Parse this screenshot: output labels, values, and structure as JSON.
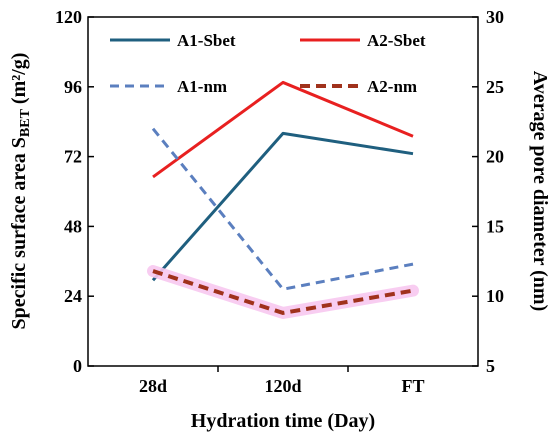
{
  "chart_data": {
    "type": "line",
    "xlabel": "Hydration time  (Day)",
    "ylabel_left_main": "Specific surface area S",
    "ylabel_left_sub": "BET",
    "ylabel_left_unit": " (m²/g)",
    "ylabel_right": "Average pore diameter  (nm)",
    "categories": [
      "28d",
      "120d",
      "FT"
    ],
    "y_left": {
      "lim": [
        0,
        120
      ],
      "ticks": [
        0,
        24,
        48,
        72,
        96,
        120
      ]
    },
    "y_right": {
      "lim": [
        5,
        30
      ],
      "ticks": [
        5,
        10,
        15,
        20,
        25,
        30
      ]
    },
    "grid": false,
    "legend_position": "top",
    "series": [
      {
        "name": "A1-Sbet",
        "axis": "left",
        "values": [
          29.5,
          80,
          73
        ],
        "color": "#1f5f7f",
        "dash": "solid",
        "width": 3
      },
      {
        "name": "A2-Sbet",
        "axis": "left",
        "values": [
          65,
          97.5,
          79
        ],
        "color": "#e82020",
        "dash": "solid",
        "width": 3
      },
      {
        "name": "A1-nm",
        "axis": "right",
        "values": [
          22,
          10.5,
          12.3
        ],
        "color": "#5b7fbf",
        "dash": "dashed",
        "width": 3
      },
      {
        "name": "A2-nm",
        "axis": "right",
        "values": [
          11.8,
          8.8,
          10.4
        ],
        "color": "#a0321c",
        "dash": "dashed",
        "width": 4
      }
    ]
  }
}
